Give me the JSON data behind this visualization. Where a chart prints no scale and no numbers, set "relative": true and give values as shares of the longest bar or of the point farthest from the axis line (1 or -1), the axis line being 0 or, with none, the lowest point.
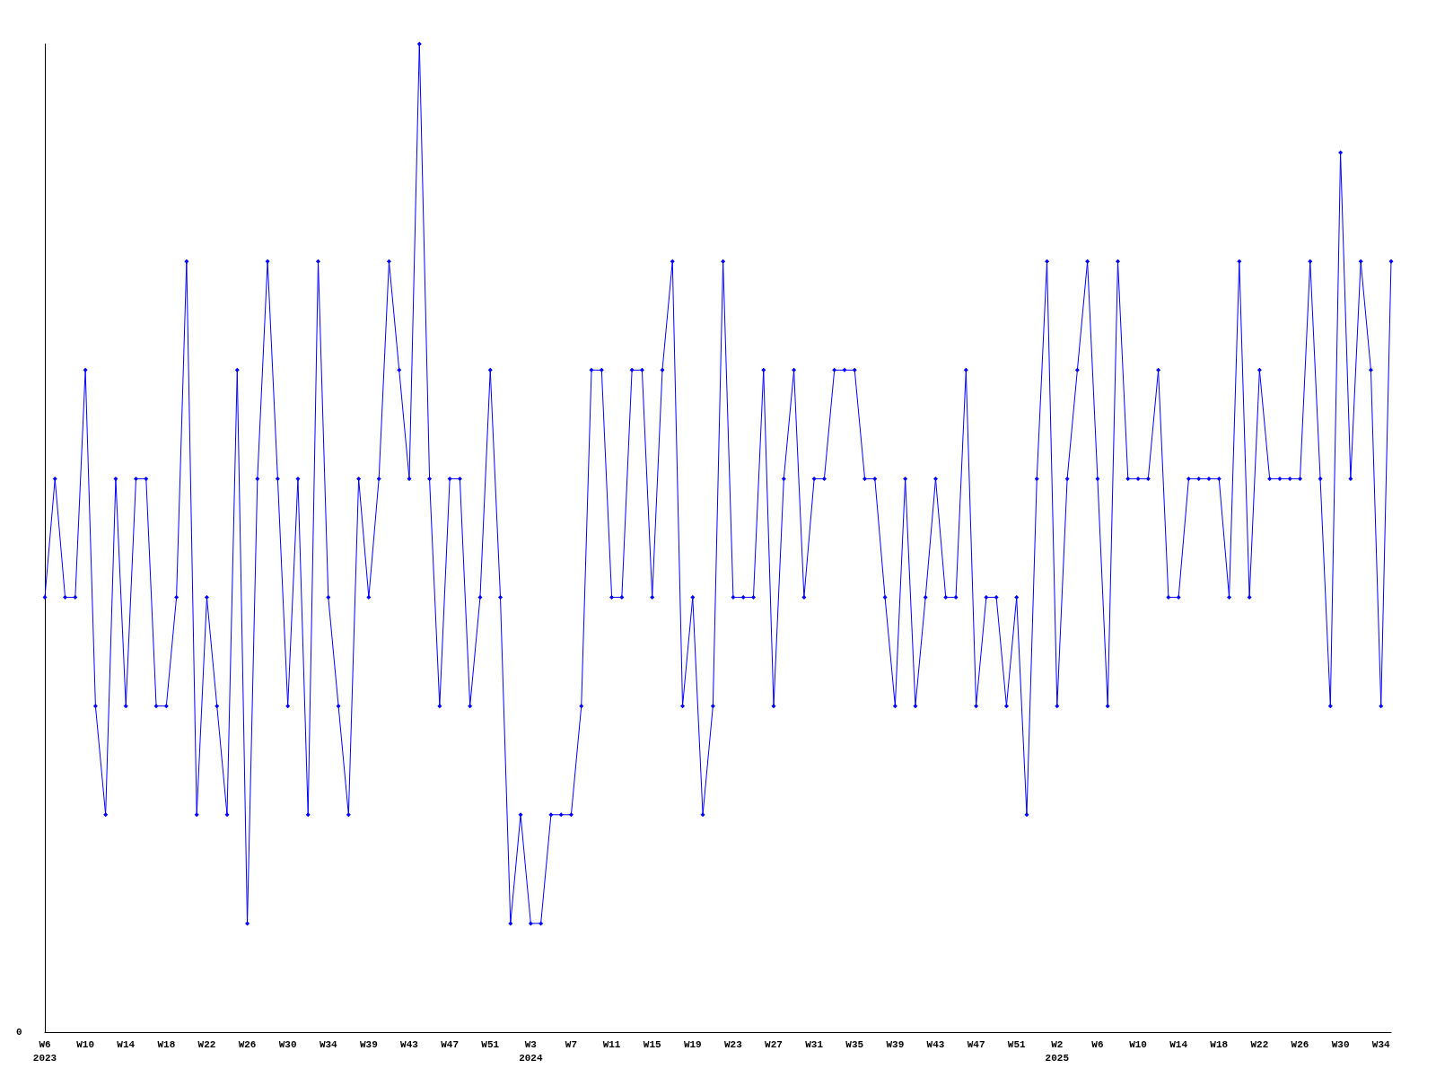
{
  "chart_data": {
    "type": "line",
    "relative": true,
    "marker": "diamond",
    "line_style": "solid",
    "grid": false,
    "annotations": [
      "0"
    ],
    "categories": [
      "W6\n2023",
      null,
      null,
      null,
      "W10",
      null,
      null,
      null,
      "W14",
      null,
      null,
      null,
      "W18",
      null,
      null,
      null,
      "W22",
      null,
      null,
      null,
      "W26",
      null,
      null,
      null,
      "W30",
      null,
      null,
      null,
      "W34",
      null,
      null,
      null,
      "W39",
      null,
      null,
      null,
      "W43",
      null,
      null,
      null,
      "W47",
      null,
      null,
      null,
      "W51",
      null,
      null,
      null,
      "W3\n2024",
      null,
      null,
      null,
      "W7",
      null,
      null,
      null,
      "W11",
      null,
      null,
      null,
      "W15",
      null,
      null,
      null,
      "W19",
      null,
      null,
      null,
      "W23",
      null,
      null,
      null,
      "W27",
      null,
      null,
      null,
      "W31",
      null,
      null,
      null,
      "W35",
      null,
      null,
      null,
      "W39",
      null,
      null,
      null,
      "W43",
      null,
      null,
      null,
      "W47",
      null,
      null,
      null,
      "W51",
      null,
      null,
      null,
      "W2\n2025",
      null,
      null,
      null,
      "W6",
      null,
      null,
      null,
      "W10",
      null,
      null,
      null,
      "W14",
      null,
      null,
      null,
      "W18",
      null,
      null,
      null,
      "W22",
      null,
      null,
      null,
      "W26",
      null,
      null,
      null,
      "W30",
      null,
      null,
      null,
      "W34",
      null
    ],
    "series": [
      {
        "color": "#0000ff",
        "values": [
          0.44,
          0.56,
          0.44,
          0.44,
          0.67,
          0.33,
          0.22,
          0.56,
          0.33,
          0.56,
          0.56,
          0.33,
          0.33,
          0.44,
          0.78,
          0.22,
          0.44,
          0.33,
          0.22,
          0.67,
          0.11,
          0.56,
          0.78,
          0.56,
          0.33,
          0.56,
          0.22,
          0.78,
          0.44,
          0.33,
          0.22,
          0.56,
          0.44,
          0.56,
          0.78,
          0.67,
          0.56,
          1,
          0.56,
          0.33,
          0.56,
          0.56,
          0.33,
          0.44,
          0.67,
          0.44,
          0.11,
          0.22,
          0.11,
          0.11,
          0.22,
          0.22,
          0.22,
          0.33,
          0.67,
          0.67,
          0.44,
          0.44,
          0.67,
          0.67,
          0.44,
          0.67,
          0.78,
          0.33,
          0.44,
          0.22,
          0.33,
          0.78,
          0.44,
          0.44,
          0.44,
          0.67,
          0.33,
          0.56,
          0.67,
          0.44,
          0.56,
          0.56,
          0.67,
          0.67,
          0.67,
          0.56,
          0.56,
          0.44,
          0.33,
          0.56,
          0.33,
          0.44,
          0.56,
          0.44,
          0.44,
          0.67,
          0.33,
          0.44,
          0.44,
          0.33,
          0.44,
          0.22,
          0.56,
          0.78,
          0.33,
          0.56,
          0.67,
          0.78,
          0.56,
          0.33,
          0.78,
          0.56,
          0.56,
          0.56,
          0.67,
          0.44,
          0.44,
          0.56,
          0.56,
          0.56,
          0.56,
          0.44,
          0.78,
          0.44,
          0.67,
          0.56,
          0.56,
          0.56,
          0.56,
          0.78,
          0.56,
          0.33,
          0.89,
          0.56,
          0.78,
          0.67,
          0.33,
          0.78
        ]
      }
    ]
  }
}
